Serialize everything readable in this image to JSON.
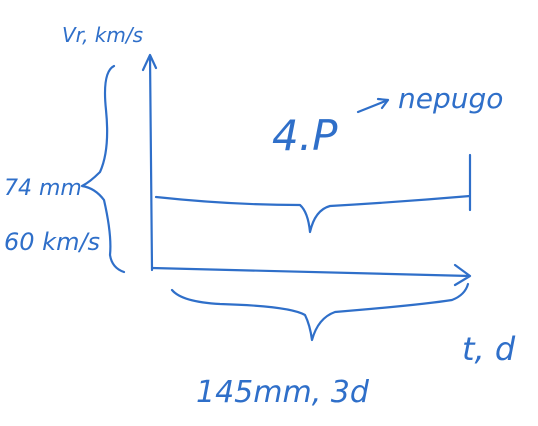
{
  "axes": {
    "y_label": "Vr, km/s",
    "x_label": "t, d"
  },
  "annotations": {
    "period_symbol": "4.P",
    "period_word": "nepugo",
    "height_mm": "74 mm",
    "height_value": "60 km/s",
    "width": "145mm, 3d"
  }
}
